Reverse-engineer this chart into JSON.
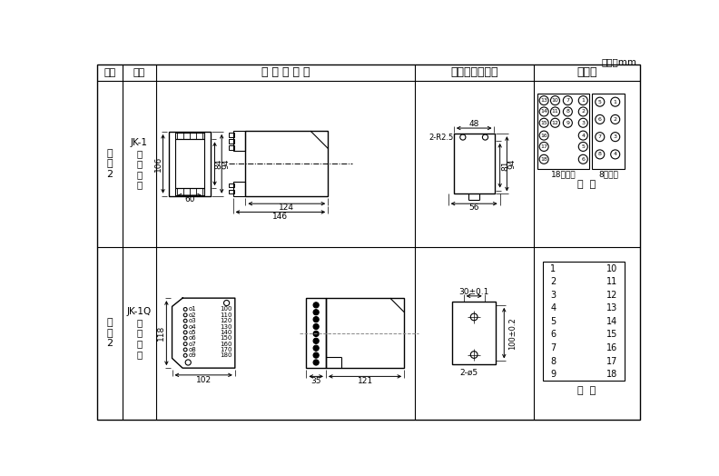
{
  "unit_text": "单位：mm",
  "header": [
    "图号",
    "结构",
    "外 形 尺 寸 图",
    "安装开孔尺寸图",
    "端子图"
  ],
  "r1_fig": "附\n图\n2",
  "r1_struct": "JK-1\n板\n后\n接\n线",
  "r2_fig": "附\n图\n2",
  "r2_struct": "JK-1Q\n板\n前\n接\n线",
  "bg": "#ffffff",
  "lc": "#000000"
}
